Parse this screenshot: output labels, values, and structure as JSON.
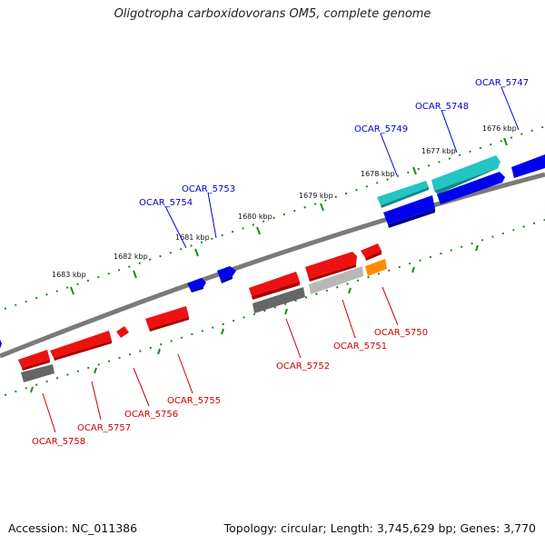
{
  "title": "Oligotropha carboxidovorans OM5, complete genome",
  "footer": {
    "accession": "Accession: NC_011386",
    "summary": "Topology: circular; Length: 3,745,629 bp; Genes: 3,770"
  },
  "colors": {
    "backbone": "#7a7a7a",
    "ticks": "#1a8a1a",
    "forward_label": "#0000cc",
    "reverse_label": "#cc0000",
    "gene_blue": "#0000ee",
    "gene_cyan": "#22c4c4",
    "gene_red": "#ee1111",
    "gene_gray_dark": "#666666",
    "gene_gray_light": "#b8b8b8",
    "gene_orange": "#ff8c00"
  },
  "kbp_labels": [
    "1676 kbp",
    "1677 kbp",
    "1678 kbp",
    "1679 kbp",
    "1680 kbp",
    "1681 kbp",
    "1682 kbp",
    "1683 kbp"
  ],
  "gene_labels_forward": [
    "OCAR_5747",
    "OCAR_5748",
    "OCAR_5749",
    "OCAR_5753",
    "OCAR_5754"
  ],
  "gene_labels_reverse": [
    "OCAR_5750",
    "OCAR_5751",
    "OCAR_5752",
    "OCAR_5755",
    "OCAR_5756",
    "OCAR_5757",
    "OCAR_5758"
  ]
}
